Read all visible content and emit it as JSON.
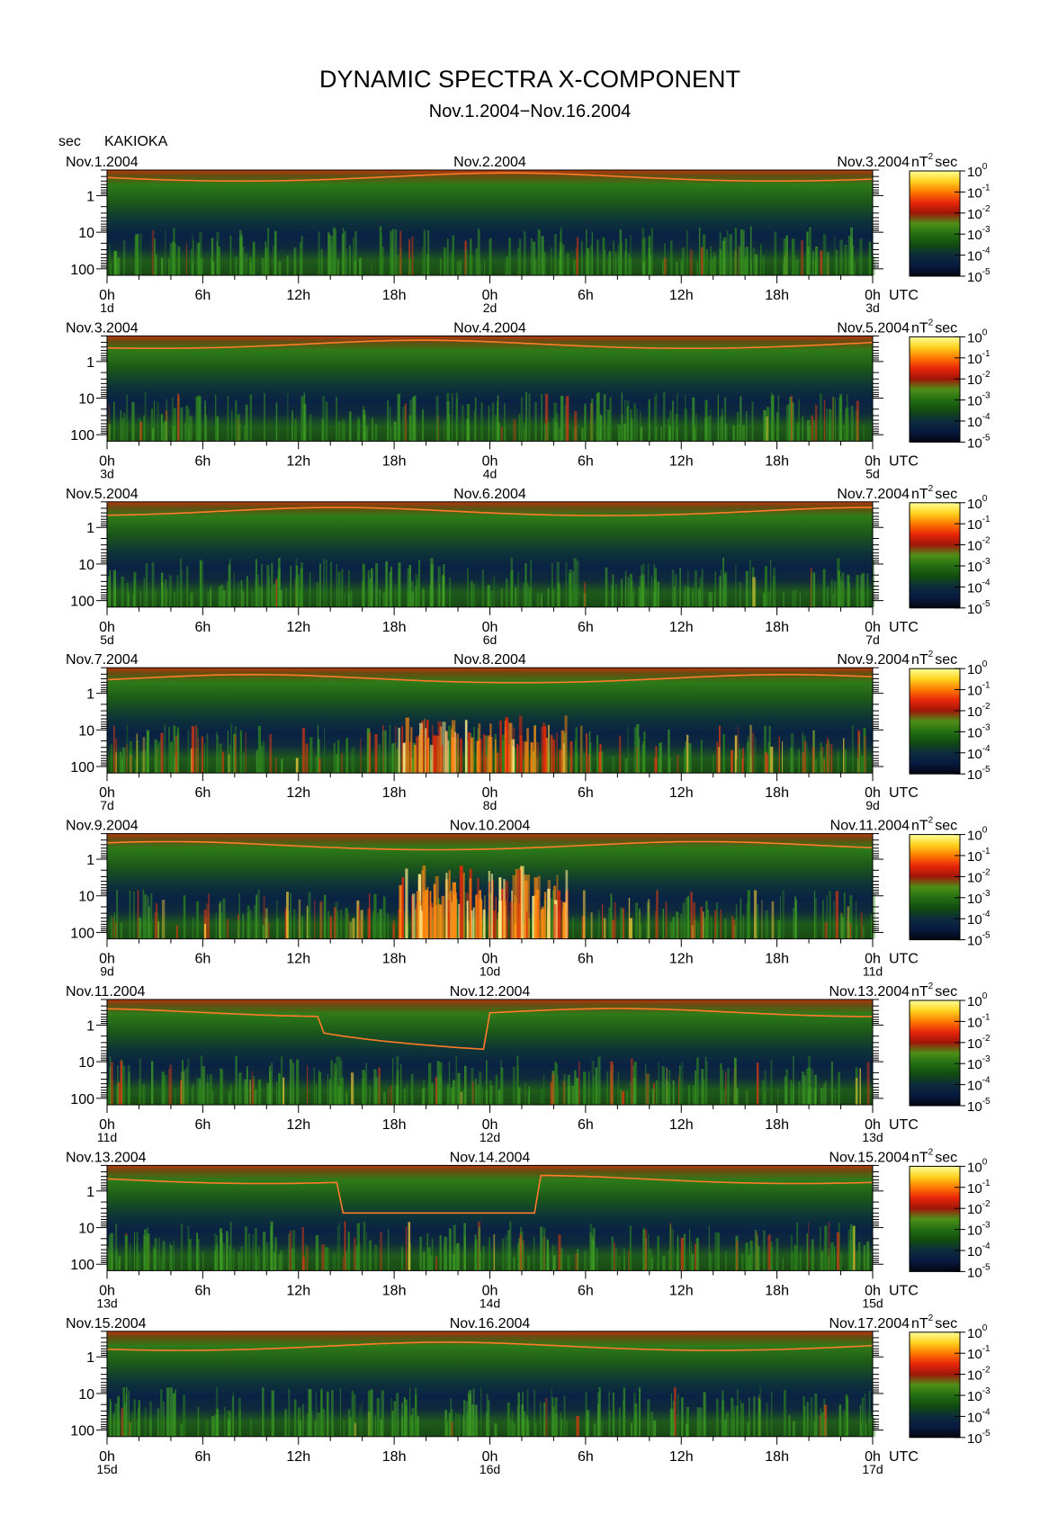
{
  "title": "DYNAMIC SPECTRA X-COMPONENT",
  "subtitle": "Nov.1.2004−Nov.16.2004",
  "y_unit_label": "sec",
  "station": "KAKIOKA",
  "colorbar_unit": "nT",
  "colorbar_unit_exp": "2",
  "colorbar_unit_suffix": "sec",
  "utc_label": "UTC",
  "chart_data": {
    "type": "heatmap",
    "y_scale": "log",
    "y_axis": {
      "label": "sec",
      "ticks": [
        "1",
        "10",
        "100"
      ],
      "tick_values": [
        1,
        10,
        100
      ],
      "range": [
        0.2,
        150
      ]
    },
    "x_axis": {
      "ticks": [
        "0h",
        "6h",
        "12h",
        "18h",
        "0h",
        "6h",
        "12h",
        "18h",
        "0h"
      ],
      "range_hours": [
        0,
        48
      ]
    },
    "colorbar": {
      "scale": "log",
      "ticks": [
        {
          "base": "10",
          "exp": "0"
        },
        {
          "base": "10",
          "exp": "-1"
        },
        {
          "base": "10",
          "exp": "-2"
        },
        {
          "base": "10",
          "exp": "-3"
        },
        {
          "base": "10",
          "exp": "-4"
        },
        {
          "base": "10",
          "exp": "-5"
        }
      ],
      "tick_values": [
        1,
        0.1,
        0.01,
        0.001,
        0.0001,
        1e-05
      ],
      "colors": [
        "#ffff99",
        "#ffd21e",
        "#ff7a00",
        "#e8260a",
        "#a01608",
        "#4e8f18",
        "#236e12",
        "#124c10",
        "#0c2c3c",
        "#081a40",
        "#03050f"
      ]
    },
    "panels": [
      {
        "date_left": "Nov.1.2004",
        "date_mid": "Nov.2.2004",
        "date_right": "Nov.3.2004",
        "day_left": "1d",
        "day_mid": "2d",
        "day_right": "3d",
        "activity": 0.1
      },
      {
        "date_left": "Nov.3.2004",
        "date_mid": "Nov.4.2004",
        "date_right": "Nov.5.2004",
        "day_left": "3d",
        "day_mid": "4d",
        "day_right": "5d",
        "activity": 0.15
      },
      {
        "date_left": "Nov.5.2004",
        "date_mid": "Nov.6.2004",
        "date_right": "Nov.7.2004",
        "day_left": "5d",
        "day_mid": "6d",
        "day_right": "7d",
        "activity": 0.05
      },
      {
        "date_left": "Nov.7.2004",
        "date_mid": "Nov.8.2004",
        "date_right": "Nov.9.2004",
        "day_left": "7d",
        "day_mid": "8d",
        "day_right": "9d",
        "activity": 0.6
      },
      {
        "date_left": "Nov.9.2004",
        "date_mid": "Nov.10.2004",
        "date_right": "Nov.11.2004",
        "day_left": "9d",
        "day_mid": "10d",
        "day_right": "11d",
        "activity": 0.9
      },
      {
        "date_left": "Nov.11.2004",
        "date_mid": "Nov.12.2004",
        "date_right": "Nov.13.2004",
        "day_left": "11d",
        "day_mid": "12d",
        "day_right": "13d",
        "activity": 0.35
      },
      {
        "date_left": "Nov.13.2004",
        "date_mid": "Nov.14.2004",
        "date_right": "Nov.15.2004",
        "day_left": "13d",
        "day_mid": "14d",
        "day_right": "15d",
        "activity": 0.25
      },
      {
        "date_left": "Nov.15.2004",
        "date_mid": "Nov.16.2004",
        "date_right": "Nov.17.2004",
        "day_left": "15d",
        "day_mid": "16d",
        "day_right": "17d",
        "activity": 0.1
      }
    ]
  }
}
